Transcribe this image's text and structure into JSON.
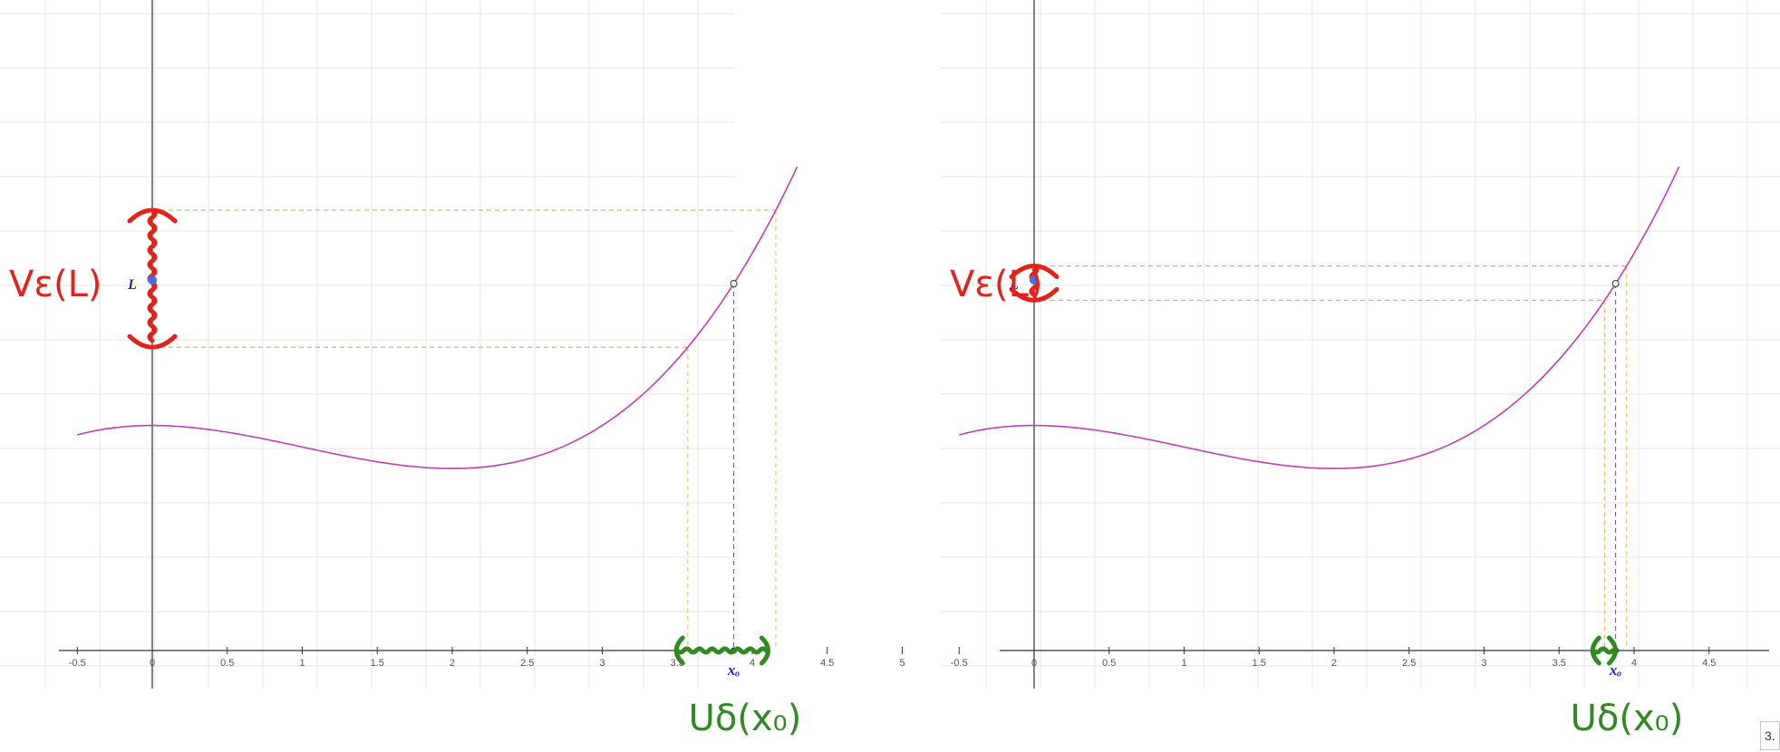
{
  "annotations": {
    "epsilon_neighborhood": "Vε(L)",
    "delta_neighborhood": "Uδ(x₀)",
    "limit_label": "L",
    "point_label": "xₒ"
  },
  "corner_value": "3.",
  "colors": {
    "curve": "#c23fae",
    "epsilon_band": "#e3231b",
    "delta_band": "#2f8a1f",
    "guide_epsilon": "#a9b66a",
    "guide_delta": "#f0b15a",
    "guide_x0": "#555577",
    "point": "#1f2bb8",
    "grid": "#e6e6e6",
    "axis": "#333333"
  },
  "chart_data": [
    {
      "type": "line",
      "title": "",
      "xlabel": "",
      "ylabel": "",
      "xlim": [
        -0.6,
        5.0
      ],
      "x_ticks": [
        "-0.5",
        "0",
        "0.5",
        "1",
        "1.5",
        "2",
        "2.5",
        "3",
        "3.5",
        "4",
        "4.5",
        "5"
      ],
      "grid": false,
      "function": "f(x) = 0.11x³ − 0.33x² + 2.3",
      "series": [
        {
          "name": "",
          "x": [
            -0.5,
            0,
            0.5,
            1,
            1.5,
            2,
            2.5,
            3,
            3.5,
            4,
            4.2
          ],
          "y": [
            2.2,
            2.3,
            2.23,
            2.08,
            1.93,
            1.86,
            1.96,
            2.3,
            2.98,
            4.06,
            4.6
          ]
        }
      ],
      "x0": 3.8,
      "L": 3.75,
      "epsilon_band": [
        3.1,
        4.5
      ],
      "delta_band": [
        3.5,
        4.1
      ]
    },
    {
      "type": "line",
      "title": "",
      "xlabel": "",
      "ylabel": "",
      "xlim": [
        -0.6,
        5.0
      ],
      "x_ticks": [
        "-0.5",
        "0",
        "0.5",
        "1",
        "1.5",
        "2",
        "2.5",
        "3",
        "3.5",
        "4",
        "4.5"
      ],
      "grid": false,
      "function": "f(x) = 0.11x³ − 0.33x² + 2.3",
      "series": [
        {
          "name": "",
          "x": [
            -0.5,
            0,
            0.5,
            1,
            1.5,
            2,
            2.5,
            3,
            3.5,
            4,
            4.2
          ],
          "y": [
            2.2,
            2.3,
            2.23,
            2.08,
            1.93,
            1.86,
            1.96,
            2.3,
            2.98,
            4.06,
            4.6
          ]
        }
      ],
      "x0": 3.8,
      "L": 3.75,
      "epsilon_band": [
        3.58,
        3.93
      ],
      "delta_band": [
        3.73,
        3.87
      ]
    }
  ]
}
